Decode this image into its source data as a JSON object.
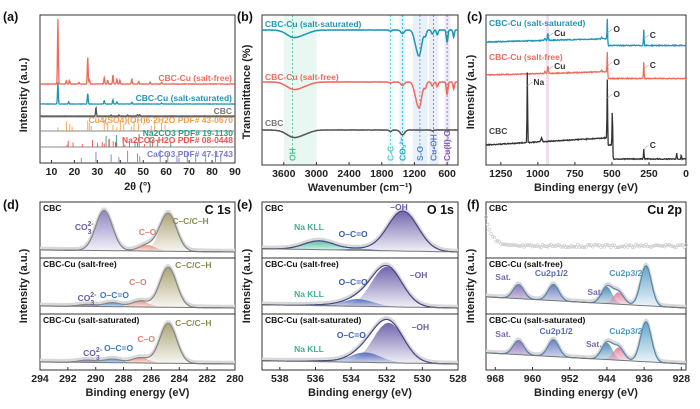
{
  "chart_data": [
    {
      "panel": "(a)",
      "type": "line",
      "xlabel": "2θ (°)",
      "ylabel": "Intensity (a.u.)",
      "xlim": [
        5,
        90
      ],
      "xticks": [
        10,
        20,
        30,
        40,
        50,
        60,
        70,
        80,
        90
      ],
      "series": [
        {
          "name": "CBC-Cu (salt-free)",
          "color": "#f06a5e",
          "peaks": [
            [
              12.8,
              1.0
            ],
            [
              16.5,
              0.05
            ],
            [
              17.8,
              0.06
            ],
            [
              22,
              0.03
            ],
            [
              25.8,
              0.42
            ],
            [
              26.6,
              0.06
            ],
            [
              33,
              0.1
            ],
            [
              34.5,
              0.06
            ],
            [
              36.8,
              0.14
            ],
            [
              38.5,
              0.08
            ],
            [
              39.8,
              0.06
            ],
            [
              45,
              0.08
            ],
            [
              48,
              0.04
            ],
            [
              53,
              0.03
            ],
            [
              58,
              0.03
            ]
          ]
        },
        {
          "name": "CBC-Cu (salt-saturated)",
          "color": "#1f96b4",
          "peaks": [
            [
              12.8,
              0.5
            ],
            [
              17.5,
              0.05
            ],
            [
              25.8,
              0.25
            ],
            [
              33,
              0.08
            ],
            [
              36.8,
              0.1
            ],
            [
              38.5,
              0.05
            ],
            [
              45,
              0.04
            ],
            [
              58,
              0.02
            ]
          ]
        },
        {
          "name": "CBC",
          "color": "#555555",
          "peaks": [
            [
              29.4,
              0.35
            ],
            [
              36,
              0.04
            ],
            [
              39.4,
              0.05
            ],
            [
              43.2,
              0.04
            ],
            [
              47.5,
              0.05
            ],
            [
              48.5,
              0.05
            ]
          ]
        }
      ],
      "references": [
        {
          "name": "Cu4(SO4)(OH)6·2H2O PDF# 43-0670",
          "color": "#f0a050",
          "lines": [
            12.8,
            16.5,
            18,
            19,
            25.8,
            26.5,
            27.3,
            33,
            34.5,
            36.8,
            38.5,
            40,
            41.5,
            44.8,
            46,
            48,
            53.5,
            55,
            58,
            59.5
          ]
        },
        {
          "name": "Na2CO3 PDF# 19-1130",
          "color": "#2e9c7c",
          "lines": [
            30.1,
            33.8,
            35.2,
            37.9,
            38.3,
            41.3,
            46.4,
            48.2,
            53,
            56.3,
            62
          ]
        },
        {
          "name": "Na2CO3·H2O PDF# 08-0448",
          "color": "#f05050",
          "lines": [
            16.8,
            17.3,
            19.4,
            23.4,
            27.9,
            32.1,
            33,
            35,
            36.9,
            38.5,
            42,
            44,
            47.5,
            50.5,
            54
          ]
        },
        {
          "name": "CaCO3 PDF# 47-1743",
          "color": "#7a7ad0",
          "lines": [
            23,
            29.4,
            36,
            39.4,
            43.2,
            47.5,
            48.5,
            57.4,
            60.7,
            64.7,
            65.6,
            69.2,
            72.9,
            77.2,
            81.5,
            83.8
          ]
        }
      ]
    },
    {
      "panel": "(b)",
      "type": "line",
      "xlabel": "Wavenumber (cm⁻¹)",
      "ylabel": "Transmittance (%)",
      "xlim": [
        4000,
        400
      ],
      "xticks": [
        3600,
        3000,
        2400,
        1800,
        1200,
        600
      ],
      "series": [
        {
          "name": "CBC-Cu (salt-saturated)",
          "color": "#1f96b4"
        },
        {
          "name": "CBC-Cu (salt-free)",
          "color": "#f06a5e"
        },
        {
          "name": "CBC",
          "color": "#555555"
        }
      ],
      "bands": [
        {
          "label": "OH",
          "center": 3440,
          "range": [
            3600,
            3000
          ],
          "color": "#4fbf8f"
        },
        {
          "label": "C-C",
          "center": 1640,
          "range": [
            1690,
            1590
          ],
          "color": "#58c8c8"
        },
        {
          "label": "CO₃²⁻",
          "center": 1420,
          "range": [
            1470,
            1370
          ],
          "color": "#2aa8c8"
        },
        {
          "label": "S-O",
          "center": 1100,
          "range": [
            1230,
            960
          ],
          "color": "#4b8fd0"
        },
        {
          "label": "Cu-OH",
          "center": 850,
          "range": [
            930,
            760
          ],
          "color": "#5b7ad0"
        },
        {
          "label": "Cu(II)-O",
          "center": 600,
          "range": [
            650,
            550
          ],
          "color": "#8060c0"
        }
      ]
    },
    {
      "panel": "(c)",
      "type": "line",
      "xlabel": "Binding energy (eV)",
      "ylabel": "Intensity (a.u.)",
      "xlim": [
        1350,
        0
      ],
      "xticks": [
        1250,
        1000,
        750,
        500,
        250,
        0
      ],
      "series": [
        {
          "name": "CBC-Cu (salt-saturated)",
          "color": "#1f96b4",
          "annotations": [
            "Cu",
            "O",
            "C"
          ]
        },
        {
          "name": "CBC-Cu (salt-free)",
          "color": "#f06a5e",
          "annotations": [
            "Cu",
            "O",
            "C"
          ]
        },
        {
          "name": "CBC",
          "color": "#333333",
          "annotations": [
            "Na",
            "O",
            "C"
          ]
        }
      ],
      "highlight": {
        "range": [
          945,
          925
        ],
        "color": "#e8d0e8"
      }
    },
    {
      "panel": "(d)",
      "type": "line",
      "title": "C 1s",
      "xlabel": "Binding energy (eV)",
      "ylabel": "Intensity (a.u.)",
      "xlim": [
        294,
        280
      ],
      "xticks": [
        294,
        292,
        290,
        288,
        286,
        284,
        282,
        280
      ],
      "subplots": [
        {
          "name": "CBC",
          "components": [
            {
              "label": "CO₃²⁻",
              "center": 289.4,
              "height": 1.0,
              "color": "#8a80c0"
            },
            {
              "label": "C–O",
              "center": 286.3,
              "height": 0.15,
              "color": "#e89080"
            },
            {
              "label": "C–C/C–H",
              "center": 284.8,
              "height": 0.95,
              "color": "#a8a070"
            }
          ]
        },
        {
          "name": "CBC-Cu (salt-free)",
          "components": [
            {
              "label": "CO₃²⁻",
              "center": 290.6,
              "height": 0.05,
              "color": "#6a6aa8"
            },
            {
              "label": "O–C=O",
              "center": 288.8,
              "height": 0.1,
              "color": "#4f8fd0"
            },
            {
              "label": "C–O",
              "center": 286.8,
              "height": 0.15,
              "color": "#e89080"
            },
            {
              "label": "C–C/C–H",
              "center": 284.8,
              "height": 1.0,
              "color": "#a8a070"
            }
          ]
        },
        {
          "name": "CBC-Cu (salt-saturated)",
          "components": [
            {
              "label": "CO₃²⁻",
              "center": 290.6,
              "height": 0.06,
              "color": "#6a6aa8"
            },
            {
              "label": "O–C=O",
              "center": 288.8,
              "height": 0.09,
              "color": "#4f8fd0"
            },
            {
              "label": "C–O",
              "center": 286.8,
              "height": 0.13,
              "color": "#e89080"
            },
            {
              "label": "C–C/C–H",
              "center": 284.8,
              "height": 1.0,
              "color": "#a8a070"
            }
          ]
        }
      ]
    },
    {
      "panel": "(e)",
      "type": "line",
      "title": "O 1s",
      "xlabel": "Binding energy (eV)",
      "ylabel": "Intensity (a.u.)",
      "xlim": [
        539,
        528
      ],
      "xticks": [
        538,
        536,
        534,
        532,
        530,
        528
      ],
      "subplots": [
        {
          "name": "CBC",
          "components": [
            {
              "label": "Na KLL",
              "center": 535.8,
              "height": 0.22,
              "color": "#50c0a0"
            },
            {
              "label": "O–C=O",
              "center": 533.5,
              "height": 0.04,
              "color": "#4f70c0"
            },
            {
              "label": "–OH",
              "center": 531.1,
              "height": 1.0,
              "color": "#6a5ea8"
            }
          ]
        },
        {
          "name": "CBC-Cu (salt-free)",
          "components": [
            {
              "label": "Na KLL",
              "center": 535.5,
              "height": 0.02,
              "color": "#50c0a0"
            },
            {
              "label": "O–C=O",
              "center": 533.6,
              "height": 0.18,
              "color": "#4f70c0"
            },
            {
              "label": "–OH",
              "center": 532.0,
              "height": 1.0,
              "color": "#6a5ea8"
            }
          ]
        },
        {
          "name": "CBC-Cu (salt-saturated)",
          "components": [
            {
              "label": "Na KLL",
              "center": 535.5,
              "height": 0.02,
              "color": "#50c0a0"
            },
            {
              "label": "O–C=O",
              "center": 533.2,
              "height": 0.25,
              "color": "#4f70c0"
            },
            {
              "label": "–OH",
              "center": 531.9,
              "height": 1.0,
              "color": "#6a5ea8"
            }
          ]
        }
      ]
    },
    {
      "panel": "(f)",
      "type": "line",
      "title": "Cu 2p",
      "xlabel": "Binding energy (eV)",
      "ylabel": "Intensity (a.u.)",
      "xlim": [
        970,
        927
      ],
      "xticks": [
        968,
        960,
        952,
        944,
        936,
        928
      ],
      "subplots": [
        {
          "name": "CBC",
          "components": []
        },
        {
          "name": "CBC-Cu (salt-free)",
          "components": [
            {
              "label": "Sat.",
              "center": 963,
              "height": 0.35,
              "color": "#8a70b8"
            },
            {
              "label": "Cu2p1/2",
              "center": 955.5,
              "height": 0.4,
              "color": "#6a7ac0"
            },
            {
              "label": "Sat.",
              "center": 944,
              "height": 0.42,
              "color": "#4f8ab8"
            },
            {
              "label": "",
              "center": 941.5,
              "height": 0.3,
              "color": "#e080a0"
            },
            {
              "label": "Cu2p3/2",
              "center": 935.6,
              "height": 1.0,
              "color": "#5aa0c8"
            }
          ]
        },
        {
          "name": "CBC-Cu (salt-saturated)",
          "components": [
            {
              "label": "Sat.",
              "center": 963,
              "height": 0.35,
              "color": "#8a70b8"
            },
            {
              "label": "Cu2p1/2",
              "center": 955.5,
              "height": 0.42,
              "color": "#6a7ac0"
            },
            {
              "label": "Sat.",
              "center": 944,
              "height": 0.42,
              "color": "#4f8ab8"
            },
            {
              "label": "",
              "center": 941.5,
              "height": 0.32,
              "color": "#e080a0"
            },
            {
              "label": "Cu2p3/2",
              "center": 935.6,
              "height": 1.0,
              "color": "#5aa0c8"
            }
          ]
        }
      ]
    }
  ],
  "labels": {
    "a": "(a)",
    "b": "(b)",
    "c": "(c)",
    "d": "(d)",
    "e": "(e)",
    "f": "(f)"
  }
}
